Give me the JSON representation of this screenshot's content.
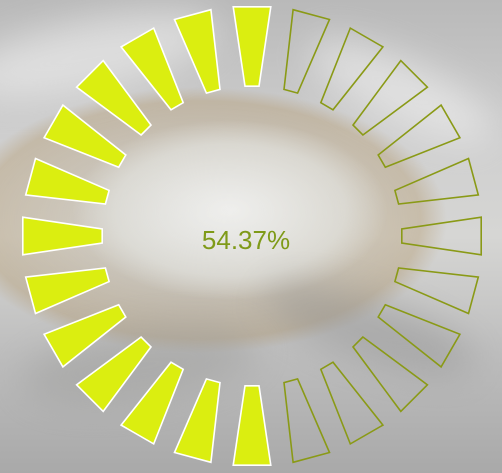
{
  "progress": {
    "percent_label": "54.37%",
    "fraction": 0.5437,
    "segment_count": 24,
    "filled_color": "#dbee10",
    "empty_stroke_color": "#8a9a16"
  }
}
